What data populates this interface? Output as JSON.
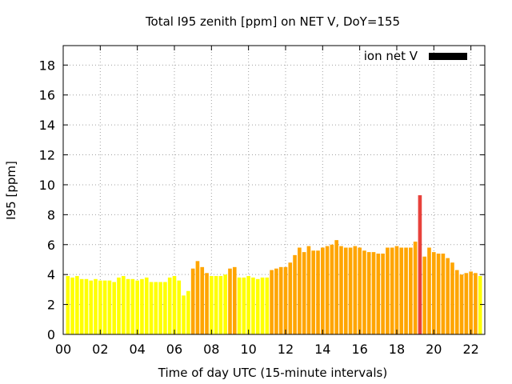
{
  "chart_data": {
    "type": "bar",
    "title": "Total I95 zenith [ppm] on NET V, DoY=155",
    "xlabel": "Time of day UTC (15-minute intervals)",
    "ylabel": "I95 [ppm]",
    "xlim": [
      0,
      22.75
    ],
    "ylim": [
      0,
      19.3
    ],
    "x_ticks": [
      0,
      2,
      4,
      6,
      8,
      10,
      12,
      14,
      16,
      18,
      20,
      22
    ],
    "x_tick_labels": [
      "00",
      "02",
      "04",
      "06",
      "08",
      "10",
      "12",
      "14",
      "16",
      "18",
      "20",
      "22"
    ],
    "y_ticks": [
      0,
      2,
      4,
      6,
      8,
      10,
      12,
      14,
      16,
      18
    ],
    "y_tick_labels": [
      "0",
      "2",
      "4",
      "6",
      "8",
      "10",
      "12",
      "14",
      "16",
      "18"
    ],
    "grid": true,
    "legend": {
      "label": "ion net V",
      "placement": "top-right",
      "color": "#000000"
    },
    "colors": {
      "low": "#ffff00",
      "medium": "#ffa500",
      "high": "#e8413b"
    },
    "bar_width_hours": 0.2,
    "x": [
      0.25,
      0.5,
      0.75,
      1.0,
      1.25,
      1.5,
      1.75,
      2.0,
      2.25,
      2.5,
      2.75,
      3.0,
      3.25,
      3.5,
      3.75,
      4.0,
      4.25,
      4.5,
      4.75,
      5.0,
      5.25,
      5.5,
      5.75,
      6.0,
      6.25,
      6.5,
      6.75,
      7.0,
      7.25,
      7.5,
      7.75,
      8.0,
      8.25,
      8.5,
      8.75,
      9.0,
      9.25,
      9.5,
      9.75,
      10.0,
      10.25,
      10.5,
      10.75,
      11.0,
      11.25,
      11.5,
      11.75,
      12.0,
      12.25,
      12.5,
      12.75,
      13.0,
      13.25,
      13.5,
      13.75,
      14.0,
      14.25,
      14.5,
      14.75,
      15.0,
      15.25,
      15.5,
      15.75,
      16.0,
      16.25,
      16.5,
      16.75,
      17.0,
      17.25,
      17.5,
      17.75,
      18.0,
      18.25,
      18.5,
      18.75,
      19.0,
      19.25,
      19.5,
      19.75,
      20.0,
      20.25,
      20.5,
      20.75,
      21.0,
      21.25,
      21.5,
      21.75,
      22.0,
      22.25,
      22.5
    ],
    "values": [
      3.9,
      3.8,
      3.9,
      3.7,
      3.7,
      3.6,
      3.7,
      3.6,
      3.6,
      3.6,
      3.5,
      3.8,
      3.9,
      3.7,
      3.7,
      3.6,
      3.7,
      3.8,
      3.5,
      3.5,
      3.5,
      3.5,
      3.8,
      3.9,
      3.6,
      2.6,
      2.9,
      4.4,
      4.9,
      4.5,
      4.1,
      3.9,
      3.9,
      3.9,
      4.0,
      4.4,
      4.5,
      3.8,
      3.8,
      3.9,
      3.8,
      3.7,
      3.8,
      3.8,
      4.3,
      4.4,
      4.5,
      4.5,
      4.8,
      5.3,
      5.8,
      5.5,
      5.9,
      5.6,
      5.6,
      5.8,
      5.9,
      6.0,
      6.3,
      5.9,
      5.8,
      5.8,
      5.9,
      5.8,
      5.6,
      5.5,
      5.5,
      5.4,
      5.4,
      5.8,
      5.8,
      5.9,
      5.8,
      5.8,
      5.8,
      6.2,
      9.3,
      5.2,
      5.8,
      5.5,
      5.4,
      5.4,
      5.1,
      4.8,
      4.3,
      4.0,
      4.1,
      4.2,
      4.1,
      3.9
    ],
    "levels": [
      "low",
      "low",
      "low",
      "low",
      "low",
      "low",
      "low",
      "low",
      "low",
      "low",
      "low",
      "low",
      "low",
      "low",
      "low",
      "low",
      "low",
      "low",
      "low",
      "low",
      "low",
      "low",
      "low",
      "low",
      "low",
      "low",
      "low",
      "medium",
      "medium",
      "medium",
      "medium",
      "low",
      "low",
      "low",
      "low",
      "medium",
      "medium",
      "low",
      "low",
      "low",
      "low",
      "low",
      "low",
      "low",
      "medium",
      "medium",
      "medium",
      "medium",
      "medium",
      "medium",
      "medium",
      "medium",
      "medium",
      "medium",
      "medium",
      "medium",
      "medium",
      "medium",
      "medium",
      "medium",
      "medium",
      "medium",
      "medium",
      "medium",
      "medium",
      "medium",
      "medium",
      "medium",
      "medium",
      "medium",
      "medium",
      "medium",
      "medium",
      "medium",
      "medium",
      "medium",
      "high",
      "medium",
      "medium",
      "medium",
      "medium",
      "medium",
      "medium",
      "medium",
      "medium",
      "medium",
      "medium",
      "medium",
      "medium",
      "low"
    ]
  }
}
